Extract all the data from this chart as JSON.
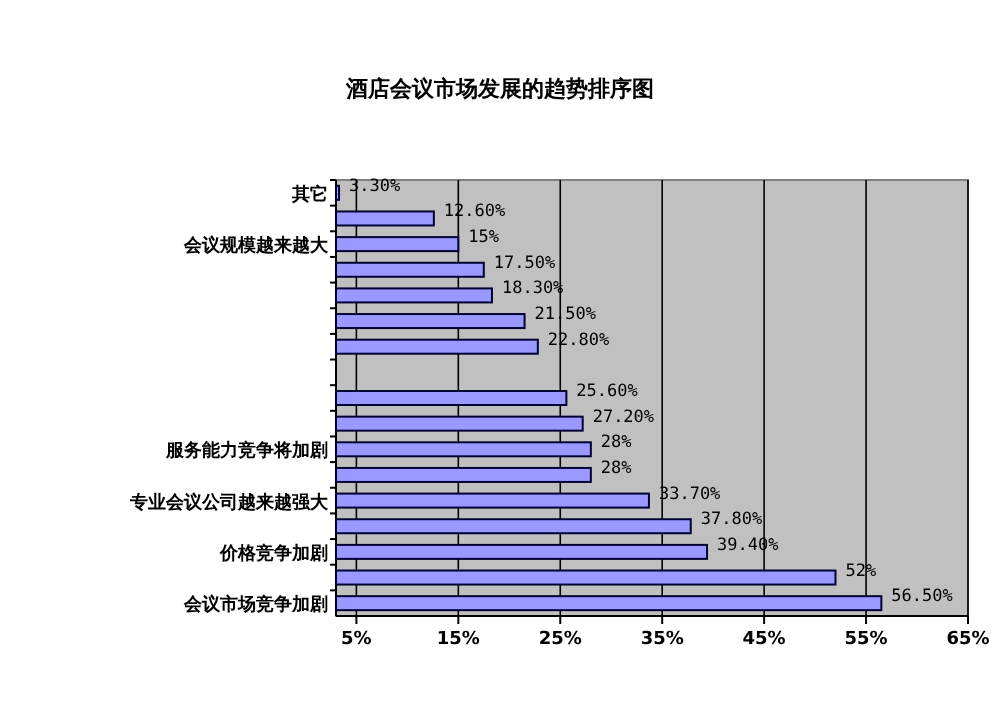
{
  "chart_data": {
    "type": "bar",
    "orientation": "horizontal",
    "title": "酒店会议市场发展的趋势排序图",
    "categories": [
      "其它",
      null,
      "会议规模越来越大",
      null,
      null,
      null,
      null,
      null,
      null,
      null,
      "服务能力竞争将加剧",
      null,
      "专业会议公司越来越强大",
      null,
      "价格竞争加剧",
      null,
      "会议市场竞争加剧"
    ],
    "values": [
      3.3,
      12.6,
      15,
      17.5,
      18.3,
      21.5,
      22.8,
      null,
      25.6,
      27.2,
      28,
      28,
      33.7,
      37.8,
      39.4,
      52,
      56.5
    ],
    "value_labels": [
      "3.30%",
      "12.60%",
      "15%",
      "17.50%",
      "18.30%",
      "21.50%",
      "22.80%",
      null,
      "25.60%",
      "27.20%",
      "28%",
      "28%",
      "33.70%",
      "37.80%",
      "39.40%",
      "52%",
      "56.50%"
    ],
    "color": "#9999ff",
    "xlim": [
      3,
      65
    ],
    "xticks": [
      {
        "value": 5,
        "label": "5%"
      },
      {
        "value": 15,
        "label": "15%"
      },
      {
        "value": 25,
        "label": "25%"
      },
      {
        "value": 35,
        "label": "35%"
      },
      {
        "value": 45,
        "label": "45%"
      },
      {
        "value": 55,
        "label": "55%"
      },
      {
        "value": 65,
        "label": "65%"
      }
    ],
    "grid": "x"
  }
}
